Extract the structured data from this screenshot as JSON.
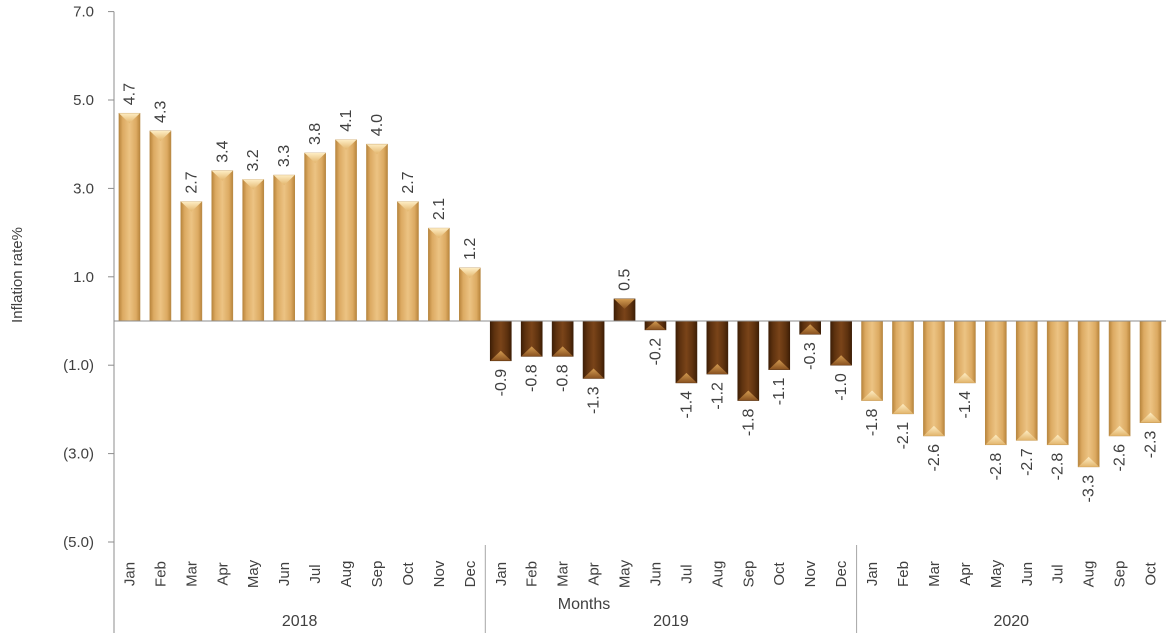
{
  "chart_data": {
    "type": "bar",
    "xlabel": "Months",
    "ylabel": "Inflation rate%",
    "ylim": [
      -5,
      7
    ],
    "yticks": [
      7,
      5,
      3,
      1,
      -1,
      -3,
      -5
    ],
    "ytick_labels": [
      "7.0",
      "5.0",
      "3.0",
      "1.0",
      "(1.0)",
      "(3.0)",
      "(5.0)"
    ],
    "grid": false,
    "groups": [
      {
        "year": "2018",
        "color": "#d9a55a",
        "categories": [
          "Jan",
          "Feb",
          "Mar",
          "Apr",
          "May",
          "Jun",
          "Jul",
          "Aug",
          "Sep",
          "Oct",
          "Nov",
          "Dec"
        ],
        "values": [
          4.7,
          4.3,
          2.7,
          3.4,
          3.2,
          3.3,
          3.8,
          4.1,
          4.0,
          2.7,
          2.1,
          1.2
        ],
        "labels": [
          "4.7",
          "4.3",
          "2.7",
          "3.4",
          "3.2",
          "3.3",
          "3.8",
          "4.1",
          "4.0",
          "2.7",
          "2.1",
          "1.2"
        ]
      },
      {
        "year": "2019",
        "color": "#5a2e0c",
        "categories": [
          "Jan",
          "Feb",
          "Mar",
          "Apr",
          "May",
          "Jun",
          "Jul",
          "Aug",
          "Sep",
          "Oct",
          "Nov",
          "Dec"
        ],
        "values": [
          -0.9,
          -0.8,
          -0.8,
          -1.3,
          0.5,
          -0.2,
          -1.4,
          -1.2,
          -1.8,
          -1.1,
          -0.3,
          -1.0
        ],
        "labels": [
          "-0.9",
          "-0.8",
          "-0.8",
          "-1.3",
          "0.5",
          "-0.2",
          "-1.4",
          "-1.2",
          "-1.8",
          "-1.1",
          "-0.3",
          "-1.0"
        ]
      },
      {
        "year": "2020",
        "color": "#d9a55a",
        "categories": [
          "Jan",
          "Feb",
          "Mar",
          "Apr",
          "May",
          "Jun",
          "Jul",
          "Aug",
          "Sep",
          "Oct"
        ],
        "values": [
          -1.8,
          -2.1,
          -2.6,
          -1.4,
          -2.8,
          -2.7,
          -2.8,
          -3.3,
          -2.6,
          -2.3
        ],
        "labels": [
          "-1.8",
          "-2.1",
          "-2.6",
          "-1.4",
          "-2.8",
          "-2.7",
          "-2.8",
          "-3.3",
          "-2.6",
          "-2.3"
        ]
      }
    ]
  }
}
